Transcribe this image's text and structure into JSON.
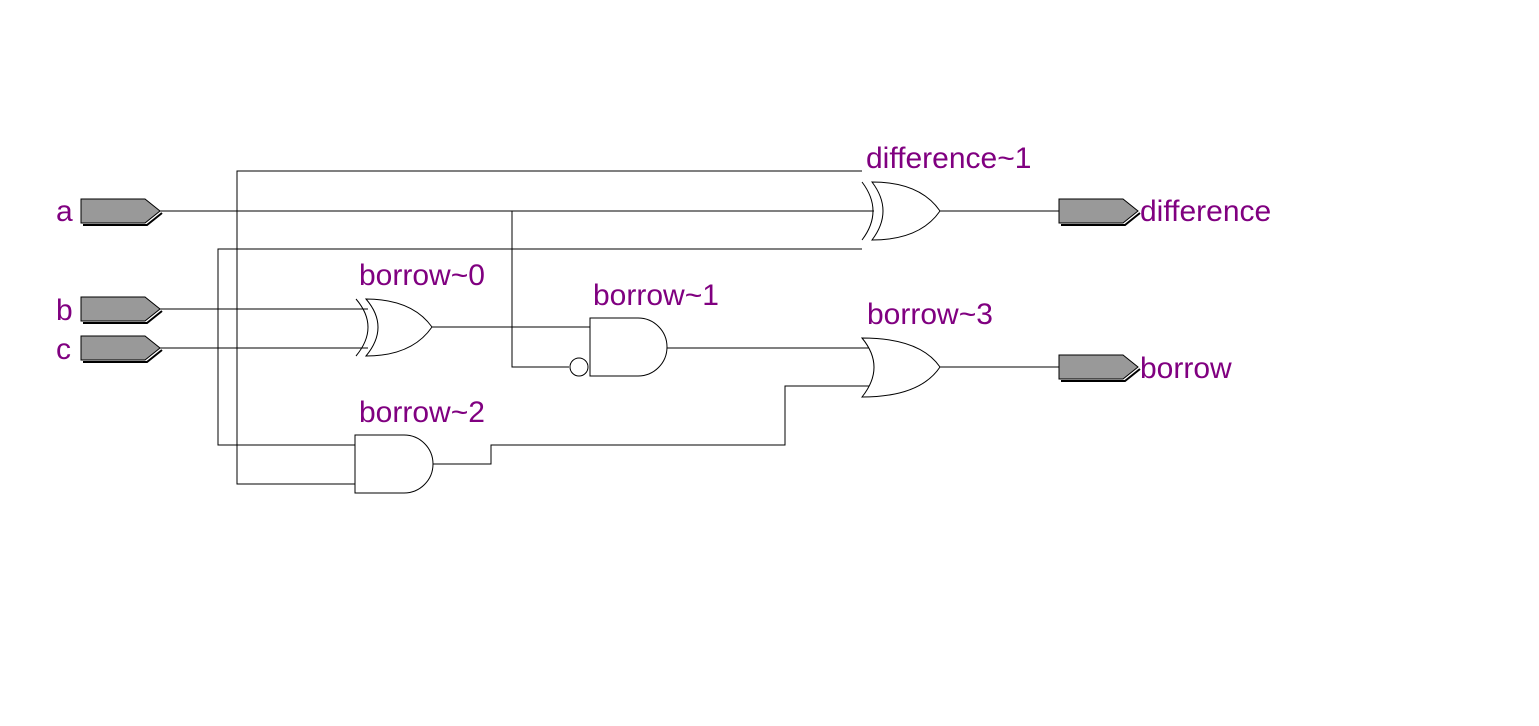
{
  "colors": {
    "label": "#800080",
    "port_fill": "#999999",
    "wire": "#000000",
    "background": "#ffffff"
  },
  "inputs": [
    {
      "id": "a",
      "label": "a"
    },
    {
      "id": "b",
      "label": "b"
    },
    {
      "id": "c",
      "label": "c"
    }
  ],
  "outputs": [
    {
      "id": "difference",
      "label": "difference"
    },
    {
      "id": "borrow",
      "label": "borrow"
    }
  ],
  "gates": [
    {
      "id": "difference_1",
      "type": "xor",
      "label": "difference~1"
    },
    {
      "id": "borrow_0",
      "type": "xor",
      "label": "borrow~0"
    },
    {
      "id": "borrow_1",
      "type": "and",
      "inverted_input": true,
      "label": "borrow~1"
    },
    {
      "id": "borrow_2",
      "type": "and",
      "label": "borrow~2"
    },
    {
      "id": "borrow_3",
      "type": "or",
      "label": "borrow~3"
    }
  ]
}
